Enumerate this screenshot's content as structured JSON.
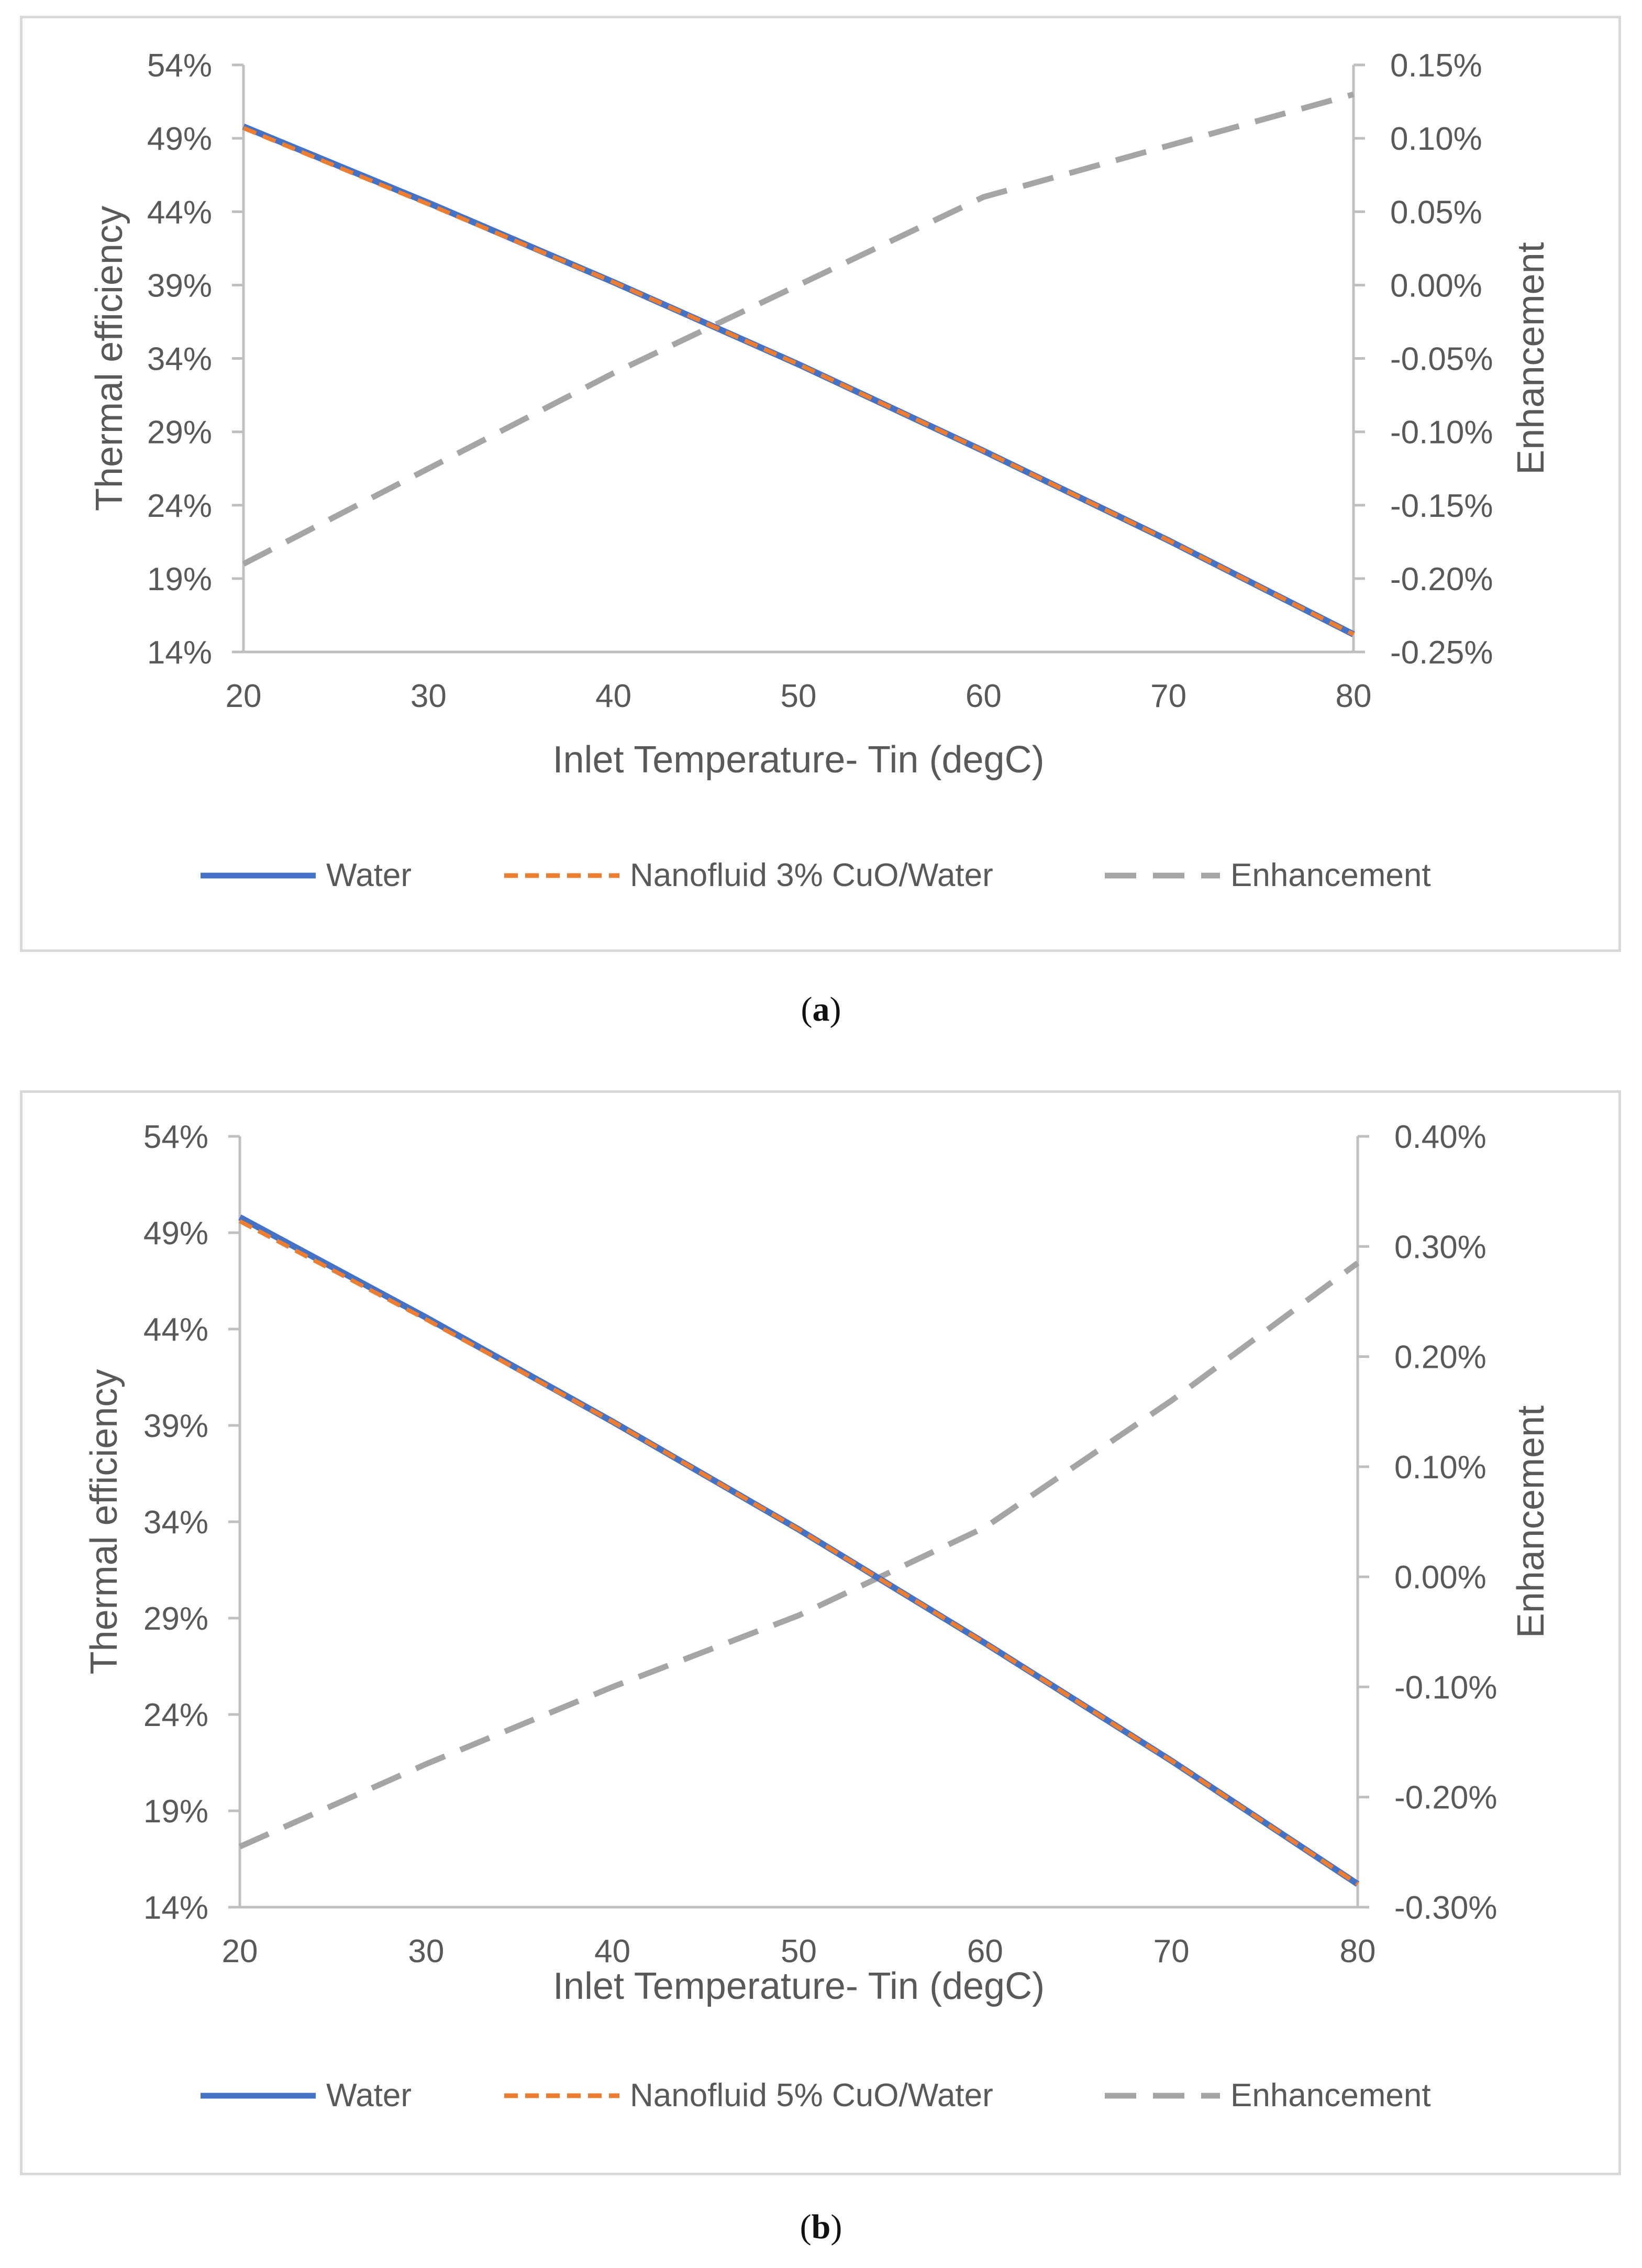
{
  "chart_data": [
    {
      "type": "line",
      "panel_label": "a",
      "title": "",
      "xlabel": "Inlet Temperature- Tin (degC)",
      "ylabel": "Thermal efficiency",
      "y2label": "Enhancement",
      "x": [
        20,
        30,
        40,
        50,
        60,
        70,
        80
      ],
      "xticks": [
        "20",
        "30",
        "40",
        "50",
        "60",
        "70",
        "80"
      ],
      "xlim": [
        20,
        80
      ],
      "ylim": [
        14,
        54
      ],
      "yticks": [
        14,
        19,
        24,
        29,
        34,
        39,
        44,
        49,
        54
      ],
      "ytick_labels": [
        "14%",
        "19%",
        "24%",
        "29%",
        "34%",
        "39%",
        "44%",
        "49%",
        "54%"
      ],
      "y2lim": [
        -0.25,
        0.15
      ],
      "y2ticks": [
        -0.25,
        -0.2,
        -0.15,
        -0.1,
        -0.05,
        0.0,
        0.05,
        0.1,
        0.15
      ],
      "y2tick_labels": [
        "-0.25%",
        "-0.20%",
        "-0.15%",
        "-0.10%",
        "-0.05%",
        "0.00%",
        "0.05%",
        "0.10%",
        "0.15%"
      ],
      "grid": false,
      "legend_position": "bottom",
      "series": [
        {
          "name": "Water",
          "axis": "left",
          "color": "#4472c4",
          "style": "solid",
          "values": [
            49.8,
            44.6,
            39.2,
            33.6,
            27.7,
            21.6,
            15.2
          ]
        },
        {
          "name": "Nanofluid 3% CuO/Water",
          "axis": "left",
          "color": "#ed7d31",
          "style": "dashed",
          "values": [
            49.7,
            44.5,
            39.2,
            33.6,
            27.7,
            21.6,
            15.2
          ]
        },
        {
          "name": "Enhancement",
          "axis": "right",
          "color": "#a5a5a5",
          "style": "longdash",
          "values": [
            -0.19,
            -0.125,
            -0.06,
            0.0,
            0.06,
            0.095,
            0.13
          ]
        }
      ]
    },
    {
      "type": "line",
      "panel_label": "b",
      "title": "",
      "xlabel": "Inlet Temperature- Tin (degC)",
      "ylabel": "Thermal efficiency",
      "y2label": "Enhancement",
      "x": [
        20,
        30,
        40,
        50,
        60,
        70,
        80
      ],
      "xticks": [
        "20",
        "30",
        "40",
        "50",
        "60",
        "70",
        "80"
      ],
      "xlim": [
        20,
        80
      ],
      "ylim": [
        14,
        54
      ],
      "yticks": [
        14,
        19,
        24,
        29,
        34,
        39,
        44,
        49,
        54
      ],
      "ytick_labels": [
        "14%",
        "19%",
        "24%",
        "29%",
        "34%",
        "39%",
        "44%",
        "49%",
        "54%"
      ],
      "y2lim": [
        -0.3,
        0.4
      ],
      "y2ticks": [
        -0.3,
        -0.2,
        -0.1,
        0.0,
        0.1,
        0.2,
        0.3,
        0.4
      ],
      "y2tick_labels": [
        "-0.30%",
        "-0.20%",
        "-0.10%",
        "0.00%",
        "0.10%",
        "0.20%",
        "0.30%",
        "0.40%"
      ],
      "grid": false,
      "legend_position": "bottom",
      "series": [
        {
          "name": "Water",
          "axis": "left",
          "color": "#4472c4",
          "style": "solid",
          "values": [
            49.8,
            44.6,
            39.2,
            33.6,
            27.7,
            21.6,
            15.2
          ]
        },
        {
          "name": "Nanofluid 5% CuO/Water",
          "axis": "left",
          "color": "#ed7d31",
          "style": "dashed",
          "values": [
            49.6,
            44.5,
            39.2,
            33.6,
            27.7,
            21.6,
            15.2
          ]
        },
        {
          "name": "Enhancement",
          "axis": "right",
          "color": "#a5a5a5",
          "style": "longdash",
          "values": [
            -0.245,
            -0.17,
            -0.1,
            -0.035,
            0.045,
            0.16,
            0.285
          ]
        }
      ]
    }
  ]
}
